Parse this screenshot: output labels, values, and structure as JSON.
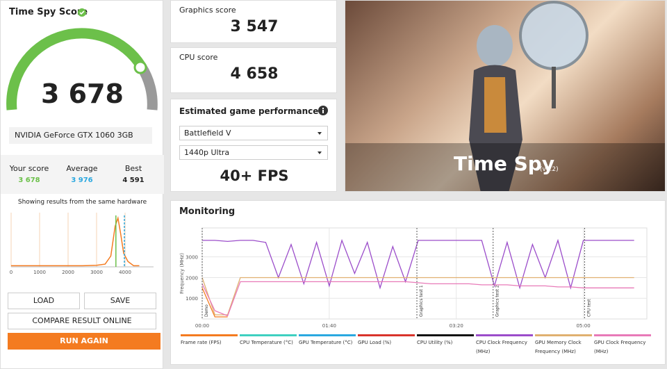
{
  "score_panel": {
    "title": "Time Spy Score",
    "score": "3 678",
    "gpu": "NVIDIA GeForce GTX 1060 3GB",
    "stats": [
      {
        "label": "Your score",
        "value": "3 678"
      },
      {
        "label": "Average",
        "value": "3 976"
      },
      {
        "label": "Best",
        "value": "4 591"
      }
    ],
    "distribution": {
      "caption": "Showing results from the same hardware",
      "x": [
        0,
        500,
        1000,
        1500,
        2000,
        2500,
        3000,
        3300,
        3500,
        3650,
        3750,
        3850,
        3950,
        4100,
        4300,
        4500
      ],
      "values": [
        2,
        2,
        2,
        2,
        2,
        2,
        3,
        5,
        20,
        75,
        90,
        60,
        25,
        10,
        2,
        2
      ],
      "color": "#f47b20",
      "xlim": [
        0,
        5000
      ],
      "ylim": [
        0,
        100
      ],
      "xticks": [
        0,
        1000,
        2000,
        3000,
        4000
      ],
      "score_line": 3678,
      "average_line": 3976
    },
    "buttons": {
      "load": "LOAD",
      "save": "SAVE",
      "compare": "COMPARE RESULT ONLINE",
      "run": "RUN AGAIN"
    }
  },
  "graphics": {
    "label": "Graphics score",
    "value": "3 547"
  },
  "cpu": {
    "label": "CPU score",
    "value": "4 658"
  },
  "game": {
    "title": "Estimated game performance",
    "game": "Battlefield V",
    "preset": "1440p Ultra",
    "fps": "40+ FPS"
  },
  "banner": {
    "title": "Time Spy",
    "version": "(v1.2)"
  },
  "monitoring": {
    "title": "Monitoring",
    "ylabel": "Frequency (MHz)",
    "xlim": [
      0,
      350
    ],
    "ylim": [
      0,
      4400
    ],
    "yticks": [
      1000,
      2000,
      3000
    ],
    "xticks": [
      {
        "value": 0,
        "label": "00:00"
      },
      {
        "value": 100,
        "label": "01:40"
      },
      {
        "value": 200,
        "label": "03:20"
      },
      {
        "value": 300,
        "label": "05:00"
      }
    ],
    "markers": [
      {
        "x": 0,
        "label": "Demo"
      },
      {
        "x": 169,
        "label": "Graphics test 1"
      },
      {
        "x": 229,
        "label": "Graphics test 2"
      },
      {
        "x": 301,
        "label": "CPU test"
      }
    ],
    "x": [
      0,
      10,
      20,
      30,
      40,
      50,
      60,
      70,
      80,
      90,
      100,
      110,
      120,
      130,
      140,
      150,
      160,
      170,
      180,
      190,
      200,
      210,
      220,
      230,
      240,
      250,
      260,
      270,
      280,
      290,
      300,
      310,
      320,
      330,
      340
    ],
    "series": [
      {
        "name": "Frame rate (FPS)",
        "color": "#f47b20",
        "values": [
          1500,
          100,
          100,
          null,
          null,
          null,
          null,
          null,
          null,
          null,
          null,
          null,
          null,
          null,
          null,
          null,
          null,
          null,
          null,
          null,
          null,
          null,
          null,
          null,
          null,
          null,
          null,
          null,
          null,
          null,
          null,
          null,
          null,
          null,
          null
        ]
      },
      {
        "name": "CPU Temperature (°C)",
        "color": "#3fd0c0"
      },
      {
        "name": "GPU Temperature (°C)",
        "color": "#2aa8e0"
      },
      {
        "name": "GPU Load (%)",
        "color": "#d9342b"
      },
      {
        "name": "CPU Utility (%)",
        "color": "#111111"
      },
      {
        "name": "CPU Clock Frequency (MHz)",
        "color": "#9b4dca",
        "values": [
          3800,
          3800,
          3750,
          3800,
          3800,
          3700,
          2000,
          3600,
          1700,
          3700,
          1600,
          3800,
          2200,
          3700,
          1500,
          3500,
          1800,
          3800,
          3800,
          3800,
          3800,
          3800,
          3800,
          1600,
          3700,
          1500,
          3600,
          2000,
          3800,
          1500,
          3800,
          3800,
          3800,
          3800,
          3800
        ]
      },
      {
        "name": "GPU Memory Clock Frequency (MHz)",
        "color": "#e0b070",
        "values": [
          2000,
          200,
          200,
          2000,
          2000,
          2000,
          2000,
          2000,
          2000,
          2000,
          2000,
          2000,
          2000,
          2000,
          2000,
          2000,
          2000,
          2000,
          2000,
          2000,
          2000,
          2000,
          2000,
          2000,
          2000,
          2000,
          2000,
          2000,
          2000,
          2000,
          2000,
          2000,
          2000,
          2000,
          2000
        ]
      },
      {
        "name": "GPU Clock Frequency (MHz)",
        "color": "#e87ab8",
        "values": [
          1700,
          400,
          150,
          1800,
          1800,
          1800,
          1800,
          1800,
          1800,
          1800,
          1800,
          1800,
          1800,
          1800,
          1800,
          1800,
          1800,
          1750,
          1700,
          1700,
          1700,
          1700,
          1650,
          1650,
          1650,
          1600,
          1600,
          1600,
          1550,
          1550,
          1500,
          1500,
          1500,
          1500,
          1500
        ]
      }
    ]
  }
}
